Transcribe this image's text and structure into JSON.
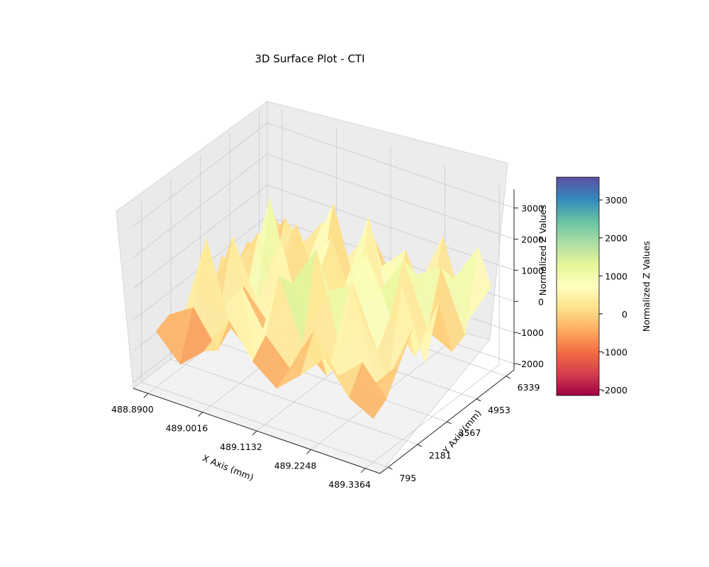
{
  "chart_data": {
    "type": "surface3d",
    "title": "3D Surface Plot - CTI",
    "xlabel": "X Axis (mm)",
    "ylabel": "Y Axis (mm)",
    "zlabel": "Normalized Z Values",
    "x_ticks": [
      "488.8900",
      "489.0016",
      "489.1132",
      "489.2248",
      "489.3364"
    ],
    "y_ticks": [
      "795",
      "2181",
      "3567",
      "4953",
      "6339"
    ],
    "z_ticks": [
      "-2000",
      "-1000",
      "0",
      "1000",
      "2000",
      "3000"
    ],
    "xlim": [
      488.89,
      489.3364
    ],
    "ylim": [
      795,
      6339
    ],
    "zlim": [
      -2200,
      3600
    ],
    "colormap": "Spectral",
    "colorbar": {
      "label": "Normalized Z Values",
      "ticks": [
        "-2000",
        "-1000",
        "0",
        "1000",
        "2000",
        "3000"
      ],
      "range": [
        -2150,
        3600
      ]
    },
    "grid": true,
    "surface_z": [
      [
        -400,
        -1200,
        -500,
        800,
        -300,
        -900,
        -200,
        600,
        -400,
        -800
      ],
      [
        -200,
        300,
        -800,
        1500,
        200,
        -600,
        900,
        -300,
        400,
        -500
      ],
      [
        -700,
        2200,
        -400,
        -1100,
        1800,
        -200,
        -900,
        2400,
        -600,
        300
      ],
      [
        100,
        -500,
        600,
        -300,
        1200,
        2600,
        -400,
        700,
        -800,
        1100
      ],
      [
        -900,
        1600,
        -200,
        2000,
        -700,
        900,
        1400,
        -500,
        1900,
        -300
      ],
      [
        400,
        -600,
        2800,
        -300,
        800,
        -1000,
        2100,
        300,
        -700,
        1300
      ],
      [
        -300,
        1100,
        -900,
        600,
        1700,
        -400,
        500,
        1800,
        -200,
        -600
      ],
      [
        200,
        -800,
        1300,
        -500,
        -200,
        2300,
        -700,
        1000,
        1500,
        -400
      ],
      [
        -600,
        900,
        -100,
        1900,
        -800,
        400,
        1200,
        -600,
        800,
        2100
      ],
      [
        300,
        -400,
        700,
        -200,
        1000,
        -500,
        -300,
        1600,
        -900,
        500
      ]
    ]
  }
}
